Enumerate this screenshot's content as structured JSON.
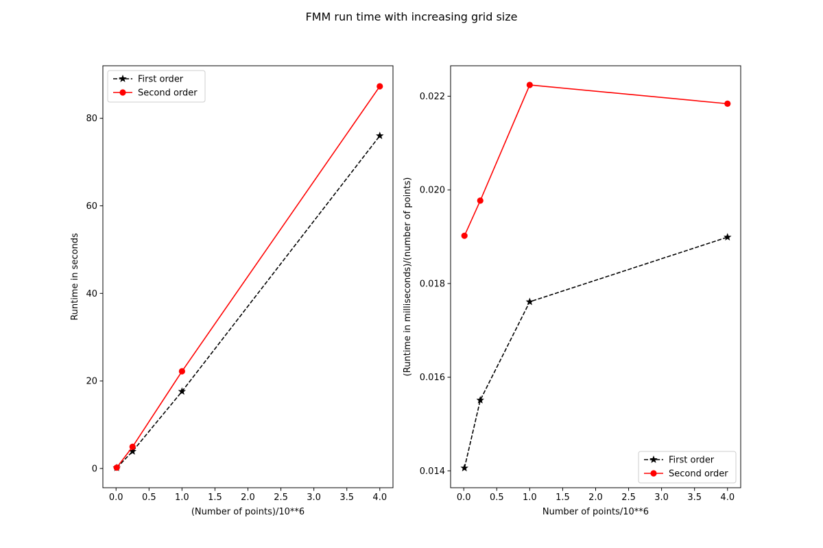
{
  "figure": {
    "title": "FMM run time with increasing grid size"
  },
  "chart_data": [
    {
      "type": "line",
      "xlabel": "(Number of points)/10**6",
      "ylabel": "Runtime in seconds",
      "xlim": [
        -0.2,
        4.2
      ],
      "ylim": [
        -4.4,
        92.0
      ],
      "xticks": [
        0.0,
        0.5,
        1.0,
        1.5,
        2.0,
        2.5,
        3.0,
        3.5,
        4.0
      ],
      "xtick_labels": [
        "0.0",
        "0.5",
        "1.0",
        "1.5",
        "2.0",
        "2.5",
        "3.0",
        "3.5",
        "4.0"
      ],
      "yticks": [
        0,
        20,
        40,
        60,
        80
      ],
      "ytick_labels": [
        "0",
        "20",
        "40",
        "60",
        "80"
      ],
      "grid": false,
      "legend": "upper-left",
      "x": [
        0.01,
        0.25,
        1.0,
        4.0
      ],
      "series": [
        {
          "name": "First order",
          "values": [
            0.14,
            3.9,
            17.6,
            76.0
          ],
          "color": "#000000",
          "linestyle": "dashed",
          "marker": "star"
        },
        {
          "name": "Second order",
          "values": [
            0.19,
            4.95,
            22.2,
            87.3
          ],
          "color": "#ff0000",
          "linestyle": "solid",
          "marker": "circle"
        }
      ]
    },
    {
      "type": "line",
      "xlabel": "Number of points/10**6",
      "ylabel": "(Runtime in milliseconds)/(number of points)",
      "xlim": [
        -0.2,
        4.2
      ],
      "ylim": [
        0.01364,
        0.02265
      ],
      "xticks": [
        0.0,
        0.5,
        1.0,
        1.5,
        2.0,
        2.5,
        3.0,
        3.5,
        4.0
      ],
      "xtick_labels": [
        "0.0",
        "0.5",
        "1.0",
        "1.5",
        "2.0",
        "2.5",
        "3.0",
        "3.5",
        "4.0"
      ],
      "yticks": [
        0.014,
        0.016,
        0.018,
        0.02,
        0.022
      ],
      "ytick_labels": [
        "0.014",
        "0.016",
        "0.018",
        "0.020",
        "0.022"
      ],
      "grid": false,
      "legend": "lower-right",
      "x": [
        0.01,
        0.25,
        1.0,
        4.0
      ],
      "series": [
        {
          "name": "First order",
          "values": [
            0.01406,
            0.01551,
            0.01761,
            0.01899
          ],
          "color": "#000000",
          "linestyle": "dashed",
          "marker": "star"
        },
        {
          "name": "Second order",
          "values": [
            0.01902,
            0.01977,
            0.02224,
            0.02184
          ],
          "color": "#ff0000",
          "linestyle": "solid",
          "marker": "circle"
        }
      ]
    }
  ]
}
